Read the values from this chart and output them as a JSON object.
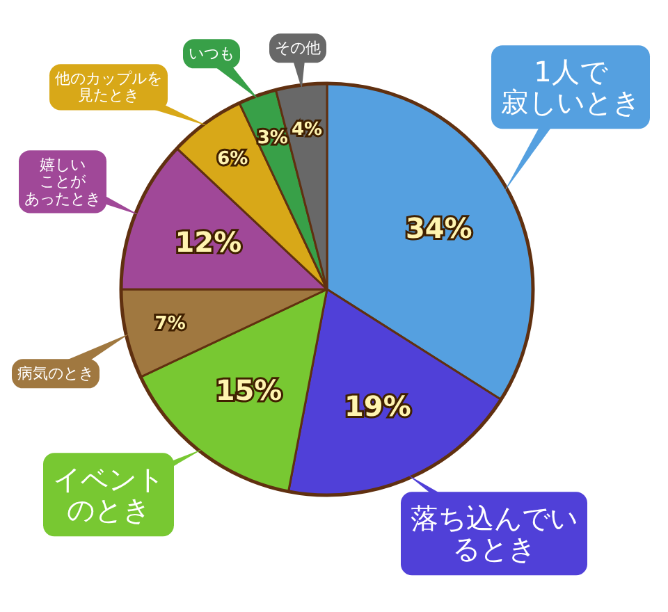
{
  "chart_data": {
    "type": "pie",
    "categories": [
      "1人で寂しいとき",
      "落ち込んでいるとき",
      "イベントのとき",
      "病気のとき",
      "嬉しいことがあったとき",
      "他のカップルを見たとき",
      "いつも",
      "その他"
    ],
    "values": [
      34,
      19,
      15,
      7,
      12,
      6,
      3,
      4
    ],
    "value_labels": [
      "34%",
      "19%",
      "15%",
      "7%",
      "12%",
      "6%",
      "3%",
      "4%"
    ],
    "colors": [
      "#55a0e0",
      "#5040d8",
      "#78c832",
      "#a07840",
      "#a04898",
      "#d8a818",
      "#38a048",
      "#686868"
    ]
  }
}
